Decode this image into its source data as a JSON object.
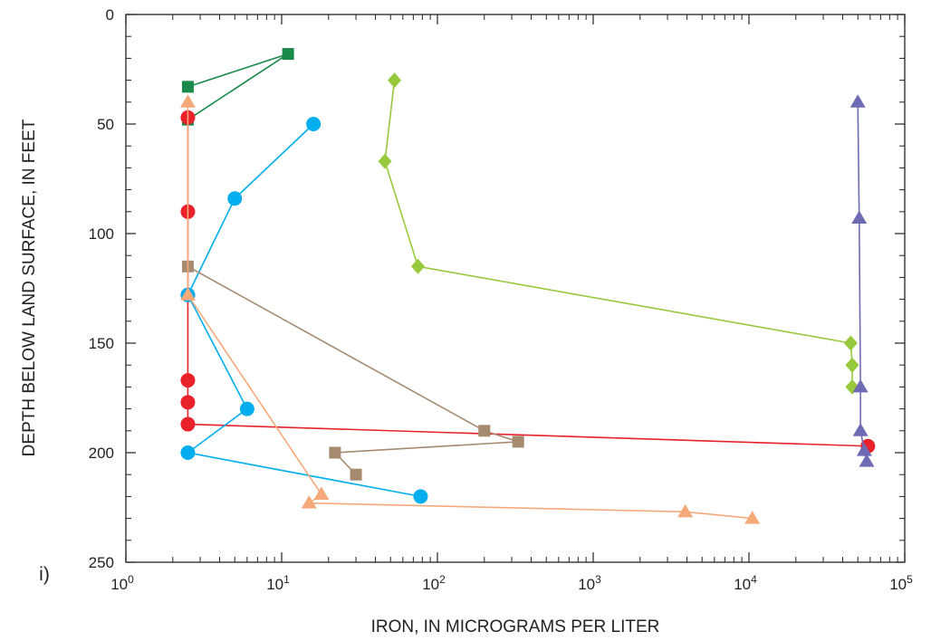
{
  "panel_label": "i)",
  "chart_data": {
    "type": "scatter",
    "xlabel": "IRON, IN MICROGRAMS PER LITER",
    "ylabel": "DEPTH BELOW LAND SURFACE, IN FEET",
    "x_scale": "log",
    "xlim": [
      1,
      100000
    ],
    "ylim": [
      0,
      250
    ],
    "y_inverted": true,
    "grid": false,
    "x_ticks": [
      {
        "value": 1,
        "base": "10",
        "exp": "0"
      },
      {
        "value": 10,
        "base": "10",
        "exp": "1"
      },
      {
        "value": 100,
        "base": "10",
        "exp": "2"
      },
      {
        "value": 1000,
        "base": "10",
        "exp": "3"
      },
      {
        "value": 10000,
        "base": "10",
        "exp": "4"
      },
      {
        "value": 100000,
        "base": "10",
        "exp": "5"
      }
    ],
    "y_ticks": [
      {
        "value": 0,
        "label": "0"
      },
      {
        "value": 50,
        "label": "50"
      },
      {
        "value": 100,
        "label": "100"
      },
      {
        "value": 150,
        "label": "150"
      },
      {
        "value": 200,
        "label": "200"
      },
      {
        "value": 250,
        "label": "250"
      }
    ],
    "series": [
      {
        "color": "#1a8a4a",
        "marker": "square",
        "points": [
          [
            2.5,
            33
          ],
          [
            11,
            18
          ],
          [
            2.5,
            48
          ]
        ]
      },
      {
        "color": "#e8212a",
        "marker": "circle",
        "points": [
          [
            2.5,
            47
          ],
          [
            2.5,
            90
          ],
          [
            2.5,
            128
          ],
          [
            2.5,
            167
          ],
          [
            2.5,
            177
          ],
          [
            2.5,
            187
          ],
          [
            58000,
            197
          ]
        ]
      },
      {
        "color": "#00aeef",
        "marker": "circle",
        "points": [
          [
            16,
            50
          ],
          [
            5,
            84
          ],
          [
            2.5,
            128
          ],
          [
            6,
            180
          ],
          [
            2.5,
            200
          ],
          [
            78,
            220
          ]
        ]
      },
      {
        "color": "#a58a70",
        "marker": "square",
        "points": [
          [
            2.5,
            115
          ],
          [
            200,
            190
          ],
          [
            330,
            195
          ],
          [
            22,
            200
          ],
          [
            30,
            210
          ]
        ]
      },
      {
        "color": "#f5a97a",
        "marker": "triangle",
        "points": [
          [
            2.5,
            40
          ],
          [
            2.5,
            128
          ],
          [
            18,
            219
          ],
          [
            15,
            223
          ],
          [
            3900,
            227
          ],
          [
            10500,
            230
          ]
        ]
      },
      {
        "color": "#97c93d",
        "marker": "diamond",
        "points": [
          [
            53,
            30
          ],
          [
            46,
            67
          ],
          [
            75,
            115
          ],
          [
            45000,
            150
          ],
          [
            46000,
            160
          ],
          [
            46000,
            170
          ]
        ]
      },
      {
        "color": "#6e6bb4",
        "marker": "triangle",
        "points": [
          [
            50000,
            40
          ],
          [
            51000,
            93
          ],
          [
            52000,
            170
          ],
          [
            52000,
            190
          ],
          [
            55000,
            199
          ],
          [
            57000,
            204
          ]
        ]
      }
    ]
  }
}
